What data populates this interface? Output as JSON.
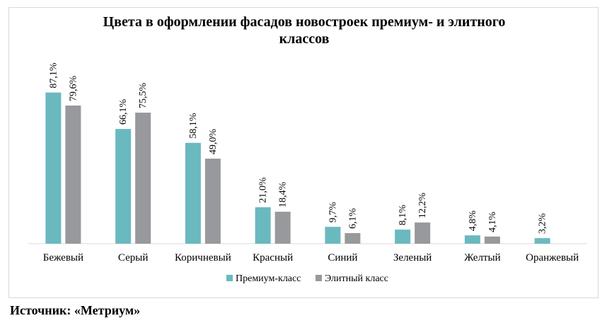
{
  "chart_data": {
    "type": "bar",
    "title": "Цвета в оформлении фасадов новостроек премиум- и элитного классов",
    "categories": [
      "Бежевый",
      "Серый",
      "Коричневый",
      "Красный",
      "Синий",
      "Зеленый",
      "Желтый",
      "Оранжевый"
    ],
    "series": [
      {
        "name": "Премиум-класс",
        "color": "#6ab9bf",
        "values": [
          87.1,
          66.1,
          58.1,
          21.0,
          9.7,
          8.1,
          4.8,
          3.2
        ],
        "labels": [
          "87,1%",
          "66,1%",
          "58,1%",
          "21,0%",
          "9,7%",
          "8,1%",
          "4,8%",
          "3,2%"
        ]
      },
      {
        "name": "Элитный класс",
        "color": "#97999c",
        "values": [
          79.6,
          75.5,
          49.0,
          18.4,
          6.1,
          12.2,
          4.1,
          null
        ],
        "labels": [
          "79,6%",
          "75,5%",
          "49,0%",
          "18,4%",
          "6,1%",
          "12,2%",
          "4,1%",
          ""
        ]
      }
    ],
    "ylim": [
      0,
      100
    ],
    "grid": false,
    "legend_position": "bottom",
    "source": "Источник: «Метриум»"
  }
}
